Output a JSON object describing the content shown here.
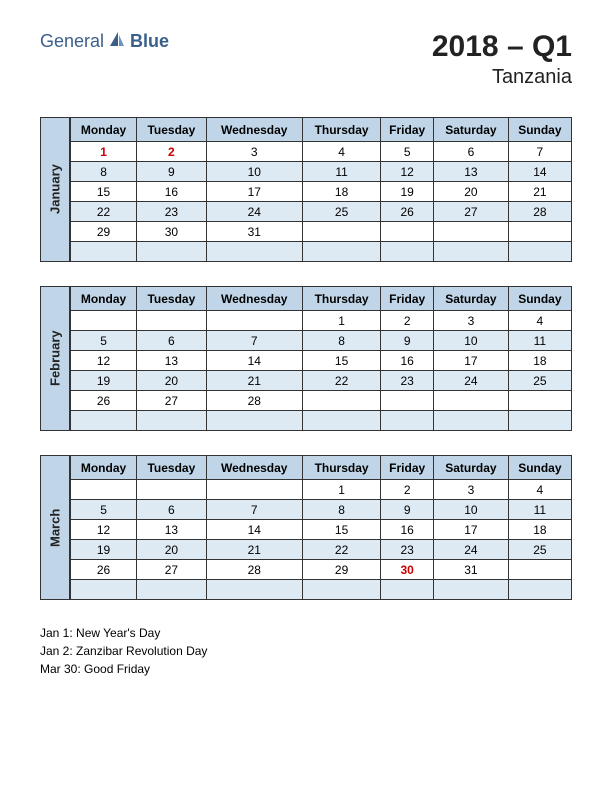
{
  "logo": {
    "text1": "General",
    "text2": "Blue"
  },
  "title": "2018 – Q1",
  "subtitle": "Tanzania",
  "day_headers": [
    "Monday",
    "Tuesday",
    "Wednesday",
    "Thursday",
    "Friday",
    "Saturday",
    "Sunday"
  ],
  "colors": {
    "header_bg": "#c0d6e8",
    "alt_row_bg": "#dde9f3",
    "border": "#333333",
    "holiday": "#cc0000",
    "logo_color": "#3a5f8a"
  },
  "months": [
    {
      "name": "January",
      "weeks": [
        [
          {
            "d": "1",
            "h": true
          },
          {
            "d": "2",
            "h": true
          },
          {
            "d": "3"
          },
          {
            "d": "4"
          },
          {
            "d": "5"
          },
          {
            "d": "6"
          },
          {
            "d": "7"
          }
        ],
        [
          {
            "d": "8"
          },
          {
            "d": "9"
          },
          {
            "d": "10"
          },
          {
            "d": "11"
          },
          {
            "d": "12"
          },
          {
            "d": "13"
          },
          {
            "d": "14"
          }
        ],
        [
          {
            "d": "15"
          },
          {
            "d": "16"
          },
          {
            "d": "17"
          },
          {
            "d": "18"
          },
          {
            "d": "19"
          },
          {
            "d": "20"
          },
          {
            "d": "21"
          }
        ],
        [
          {
            "d": "22"
          },
          {
            "d": "23"
          },
          {
            "d": "24"
          },
          {
            "d": "25"
          },
          {
            "d": "26"
          },
          {
            "d": "27"
          },
          {
            "d": "28"
          }
        ],
        [
          {
            "d": "29"
          },
          {
            "d": "30"
          },
          {
            "d": "31"
          },
          {
            "d": ""
          },
          {
            "d": ""
          },
          {
            "d": ""
          },
          {
            "d": ""
          }
        ],
        [
          {
            "d": ""
          },
          {
            "d": ""
          },
          {
            "d": ""
          },
          {
            "d": ""
          },
          {
            "d": ""
          },
          {
            "d": ""
          },
          {
            "d": ""
          }
        ]
      ]
    },
    {
      "name": "February",
      "weeks": [
        [
          {
            "d": ""
          },
          {
            "d": ""
          },
          {
            "d": ""
          },
          {
            "d": "1"
          },
          {
            "d": "2"
          },
          {
            "d": "3"
          },
          {
            "d": "4"
          }
        ],
        [
          {
            "d": "5"
          },
          {
            "d": "6"
          },
          {
            "d": "7"
          },
          {
            "d": "8"
          },
          {
            "d": "9"
          },
          {
            "d": "10"
          },
          {
            "d": "11"
          }
        ],
        [
          {
            "d": "12"
          },
          {
            "d": "13"
          },
          {
            "d": "14"
          },
          {
            "d": "15"
          },
          {
            "d": "16"
          },
          {
            "d": "17"
          },
          {
            "d": "18"
          }
        ],
        [
          {
            "d": "19"
          },
          {
            "d": "20"
          },
          {
            "d": "21"
          },
          {
            "d": "22"
          },
          {
            "d": "23"
          },
          {
            "d": "24"
          },
          {
            "d": "25"
          }
        ],
        [
          {
            "d": "26"
          },
          {
            "d": "27"
          },
          {
            "d": "28"
          },
          {
            "d": ""
          },
          {
            "d": ""
          },
          {
            "d": ""
          },
          {
            "d": ""
          }
        ],
        [
          {
            "d": ""
          },
          {
            "d": ""
          },
          {
            "d": ""
          },
          {
            "d": ""
          },
          {
            "d": ""
          },
          {
            "d": ""
          },
          {
            "d": ""
          }
        ]
      ]
    },
    {
      "name": "March",
      "weeks": [
        [
          {
            "d": ""
          },
          {
            "d": ""
          },
          {
            "d": ""
          },
          {
            "d": "1"
          },
          {
            "d": "2"
          },
          {
            "d": "3"
          },
          {
            "d": "4"
          }
        ],
        [
          {
            "d": "5"
          },
          {
            "d": "6"
          },
          {
            "d": "7"
          },
          {
            "d": "8"
          },
          {
            "d": "9"
          },
          {
            "d": "10"
          },
          {
            "d": "11"
          }
        ],
        [
          {
            "d": "12"
          },
          {
            "d": "13"
          },
          {
            "d": "14"
          },
          {
            "d": "15"
          },
          {
            "d": "16"
          },
          {
            "d": "17"
          },
          {
            "d": "18"
          }
        ],
        [
          {
            "d": "19"
          },
          {
            "d": "20"
          },
          {
            "d": "21"
          },
          {
            "d": "22"
          },
          {
            "d": "23"
          },
          {
            "d": "24"
          },
          {
            "d": "25"
          }
        ],
        [
          {
            "d": "26"
          },
          {
            "d": "27"
          },
          {
            "d": "28"
          },
          {
            "d": "29"
          },
          {
            "d": "30",
            "h": true
          },
          {
            "d": "31"
          },
          {
            "d": ""
          }
        ],
        [
          {
            "d": ""
          },
          {
            "d": ""
          },
          {
            "d": ""
          },
          {
            "d": ""
          },
          {
            "d": ""
          },
          {
            "d": ""
          },
          {
            "d": ""
          }
        ]
      ]
    }
  ],
  "holidays": [
    "Jan 1: New Year's Day",
    "Jan 2: Zanzibar Revolution Day",
    "Mar 30: Good Friday"
  ]
}
